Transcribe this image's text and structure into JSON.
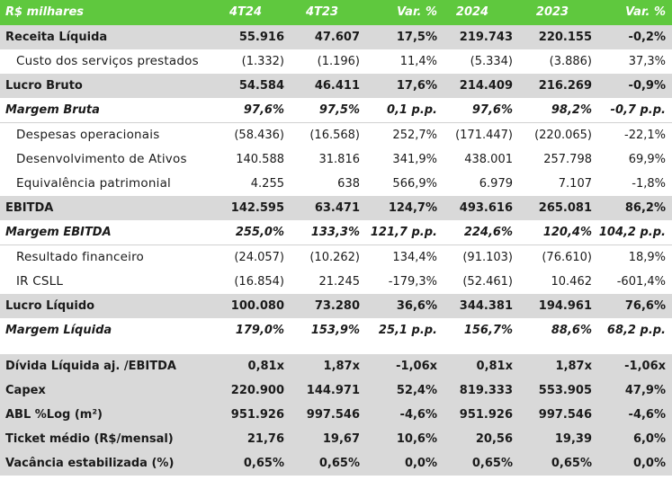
{
  "header": {
    "label": "R$ milhares",
    "c1": "4T24",
    "c2": "4T23",
    "c3": "Var. %",
    "c4": "2024",
    "c5": "2023",
    "c6": "Var. %"
  },
  "rows": [
    {
      "label": "Receita Líquida",
      "v": [
        "55.916",
        "47.607",
        "17,5%",
        "219.743",
        "220.155",
        "-0,2%"
      ]
    },
    {
      "label": "Custo dos serviços prestados",
      "v": [
        "(1.332)",
        "(1.196)",
        "11,4%",
        "(5.334)",
        "(3.886)",
        "37,3%"
      ]
    },
    {
      "label": "Lucro Bruto",
      "v": [
        "54.584",
        "46.411",
        "17,6%",
        "214.409",
        "216.269",
        "-0,9%"
      ]
    },
    {
      "label": "Margem Bruta",
      "v": [
        "97,6%",
        "97,5%",
        "0,1 p.p.",
        "97,6%",
        "98,2%",
        "-0,7 p.p."
      ]
    },
    {
      "label": "Despesas operacionais",
      "v": [
        "(58.436)",
        "(16.568)",
        "252,7%",
        "(171.447)",
        "(220.065)",
        "-22,1%"
      ]
    },
    {
      "label": "Desenvolvimento de Ativos",
      "v": [
        "140.588",
        "31.816",
        "341,9%",
        "438.001",
        "257.798",
        "69,9%"
      ]
    },
    {
      "label": "Equivalência patrimonial",
      "v": [
        "4.255",
        "638",
        "566,9%",
        "6.979",
        "7.107",
        "-1,8%"
      ]
    },
    {
      "label": "EBITDA",
      "v": [
        "142.595",
        "63.471",
        "124,7%",
        "493.616",
        "265.081",
        "86,2%"
      ]
    },
    {
      "label": "Margem EBITDA",
      "v": [
        "255,0%",
        "133,3%",
        "121,7 p.p.",
        "224,6%",
        "120,4%",
        "104,2 p.p."
      ]
    },
    {
      "label": "Resultado financeiro",
      "v": [
        "(24.057)",
        "(10.262)",
        "134,4%",
        "(91.103)",
        "(76.610)",
        "18,9%"
      ]
    },
    {
      "label": "IR CSLL",
      "v": [
        "(16.854)",
        "21.245",
        "-179,3%",
        "(52.461)",
        "10.462",
        "-601,4%"
      ]
    },
    {
      "label": "Lucro Líquido",
      "v": [
        "100.080",
        "73.280",
        "36,6%",
        "344.381",
        "194.961",
        "76,6%"
      ]
    },
    {
      "label": "Margem Líquida",
      "v": [
        "179,0%",
        "153,9%",
        "25,1 p.p.",
        "156,7%",
        "88,6%",
        "68,2 p.p."
      ]
    }
  ],
  "kpis": [
    {
      "label": "Dívida Líquida aj. /EBITDA",
      "v": [
        "0,81x",
        "1,87x",
        "-1,06x",
        "0,81x",
        "1,87x",
        "-1,06x"
      ]
    },
    {
      "label": "Capex",
      "v": [
        "220.900",
        "144.971",
        "52,4%",
        "819.333",
        "553.905",
        "47,9%"
      ]
    },
    {
      "label": "ABL %Log (m²)",
      "v": [
        "951.926",
        "997.546",
        "-4,6%",
        "951.926",
        "997.546",
        "-4,6%"
      ]
    },
    {
      "label": "Ticket médio (R$/mensal)",
      "v": [
        "21,76",
        "19,67",
        "10,6%",
        "20,56",
        "19,39",
        "6,0%"
      ]
    },
    {
      "label": "Vacância estabilizada (%)",
      "v": [
        "0,65%",
        "0,65%",
        "0,0%",
        "0,65%",
        "0,65%",
        "0,0%"
      ]
    }
  ]
}
